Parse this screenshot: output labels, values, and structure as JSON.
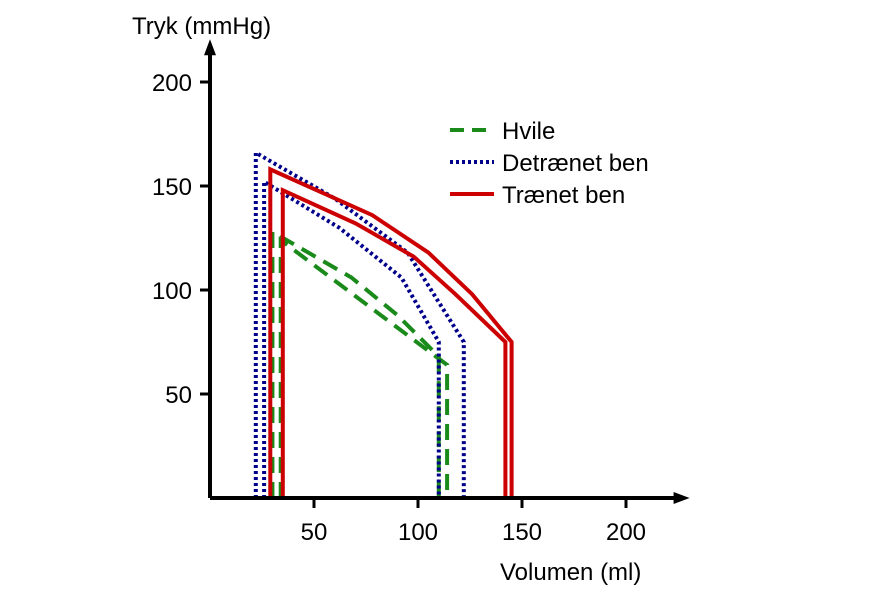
{
  "chart_data": {
    "type": "line",
    "xlabel": "Volumen (ml)",
    "ylabel": "Tryk (mmHg)",
    "xlim": [
      0,
      220
    ],
    "ylim": [
      0,
      210
    ],
    "xticks": [
      50,
      100,
      150,
      200
    ],
    "yticks": [
      50,
      100,
      150,
      200
    ],
    "grid": false,
    "legend_position": "top-right",
    "series": [
      {
        "name": "Hvile",
        "style": "dashed",
        "color": "#1a8a1a",
        "loops": [
          [
            [
              30,
              0
            ],
            [
              30,
              128
            ],
            [
              68,
              106
            ],
            [
              90,
              88
            ],
            [
              110,
              68
            ],
            [
              110,
              0
            ]
          ],
          [
            [
              34,
              0
            ],
            [
              34,
              124
            ],
            [
              114,
              64
            ],
            [
              114,
              0
            ]
          ]
        ]
      },
      {
        "name": "Detrænet ben",
        "style": "dotted",
        "color": "#00008b",
        "loops": [
          [
            [
              22,
              0
            ],
            [
              22,
              166
            ],
            [
              60,
              144
            ],
            [
              95,
              118
            ],
            [
              122,
              75
            ],
            [
              122,
              0
            ]
          ],
          [
            [
              26,
              0
            ],
            [
              26,
              152
            ],
            [
              62,
              130
            ],
            [
              92,
              106
            ],
            [
              110,
              75
            ],
            [
              110,
              0
            ]
          ]
        ]
      },
      {
        "name": "Trænet ben",
        "style": "solid",
        "color": "#cc0000",
        "loops": [
          [
            [
              29,
              0
            ],
            [
              29,
              158
            ],
            [
              78,
              136
            ],
            [
              105,
              118
            ],
            [
              126,
              98
            ],
            [
              145,
              75
            ],
            [
              145,
              0
            ]
          ],
          [
            [
              35,
              0
            ],
            [
              35,
              148
            ],
            [
              70,
              132
            ],
            [
              98,
              116
            ],
            [
              118,
              98
            ],
            [
              142,
              75
            ],
            [
              142,
              0
            ]
          ]
        ]
      }
    ]
  }
}
